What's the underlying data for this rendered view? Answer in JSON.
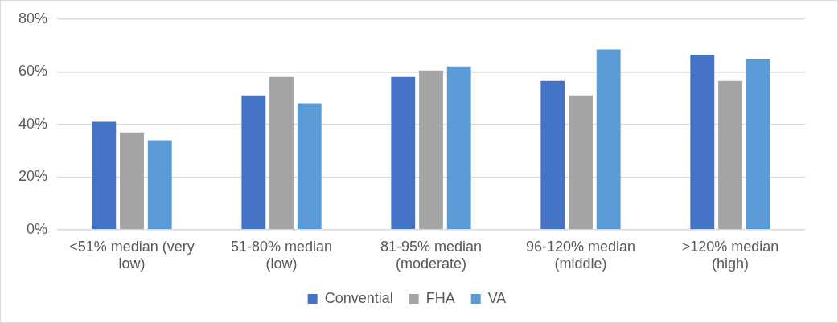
{
  "chart_data": {
    "type": "bar",
    "categories": [
      "<51% median (very low)",
      "51-80% median (low)",
      "81-95% median (moderate)",
      "96-120% median (middle)",
      ">120% median (high)"
    ],
    "series": [
      {
        "name": "Convential",
        "color": "#4472c4",
        "values": [
          41,
          51,
          58,
          56.5,
          66.5
        ]
      },
      {
        "name": "FHA",
        "color": "#a5a5a5",
        "values": [
          37,
          58,
          60.5,
          51,
          56.5
        ]
      },
      {
        "name": "VA",
        "color": "#5b9bd5",
        "values": [
          34,
          48,
          62,
          68.5,
          65
        ]
      }
    ],
    "ylim": [
      0,
      80
    ],
    "yticks": [
      {
        "value": 0,
        "label": "0%"
      },
      {
        "value": 20,
        "label": "20%"
      },
      {
        "value": 40,
        "label": "40%"
      },
      {
        "value": 60,
        "label": "60%"
      },
      {
        "value": 80,
        "label": "80%"
      }
    ],
    "grid": "y",
    "legend": "bottom"
  }
}
